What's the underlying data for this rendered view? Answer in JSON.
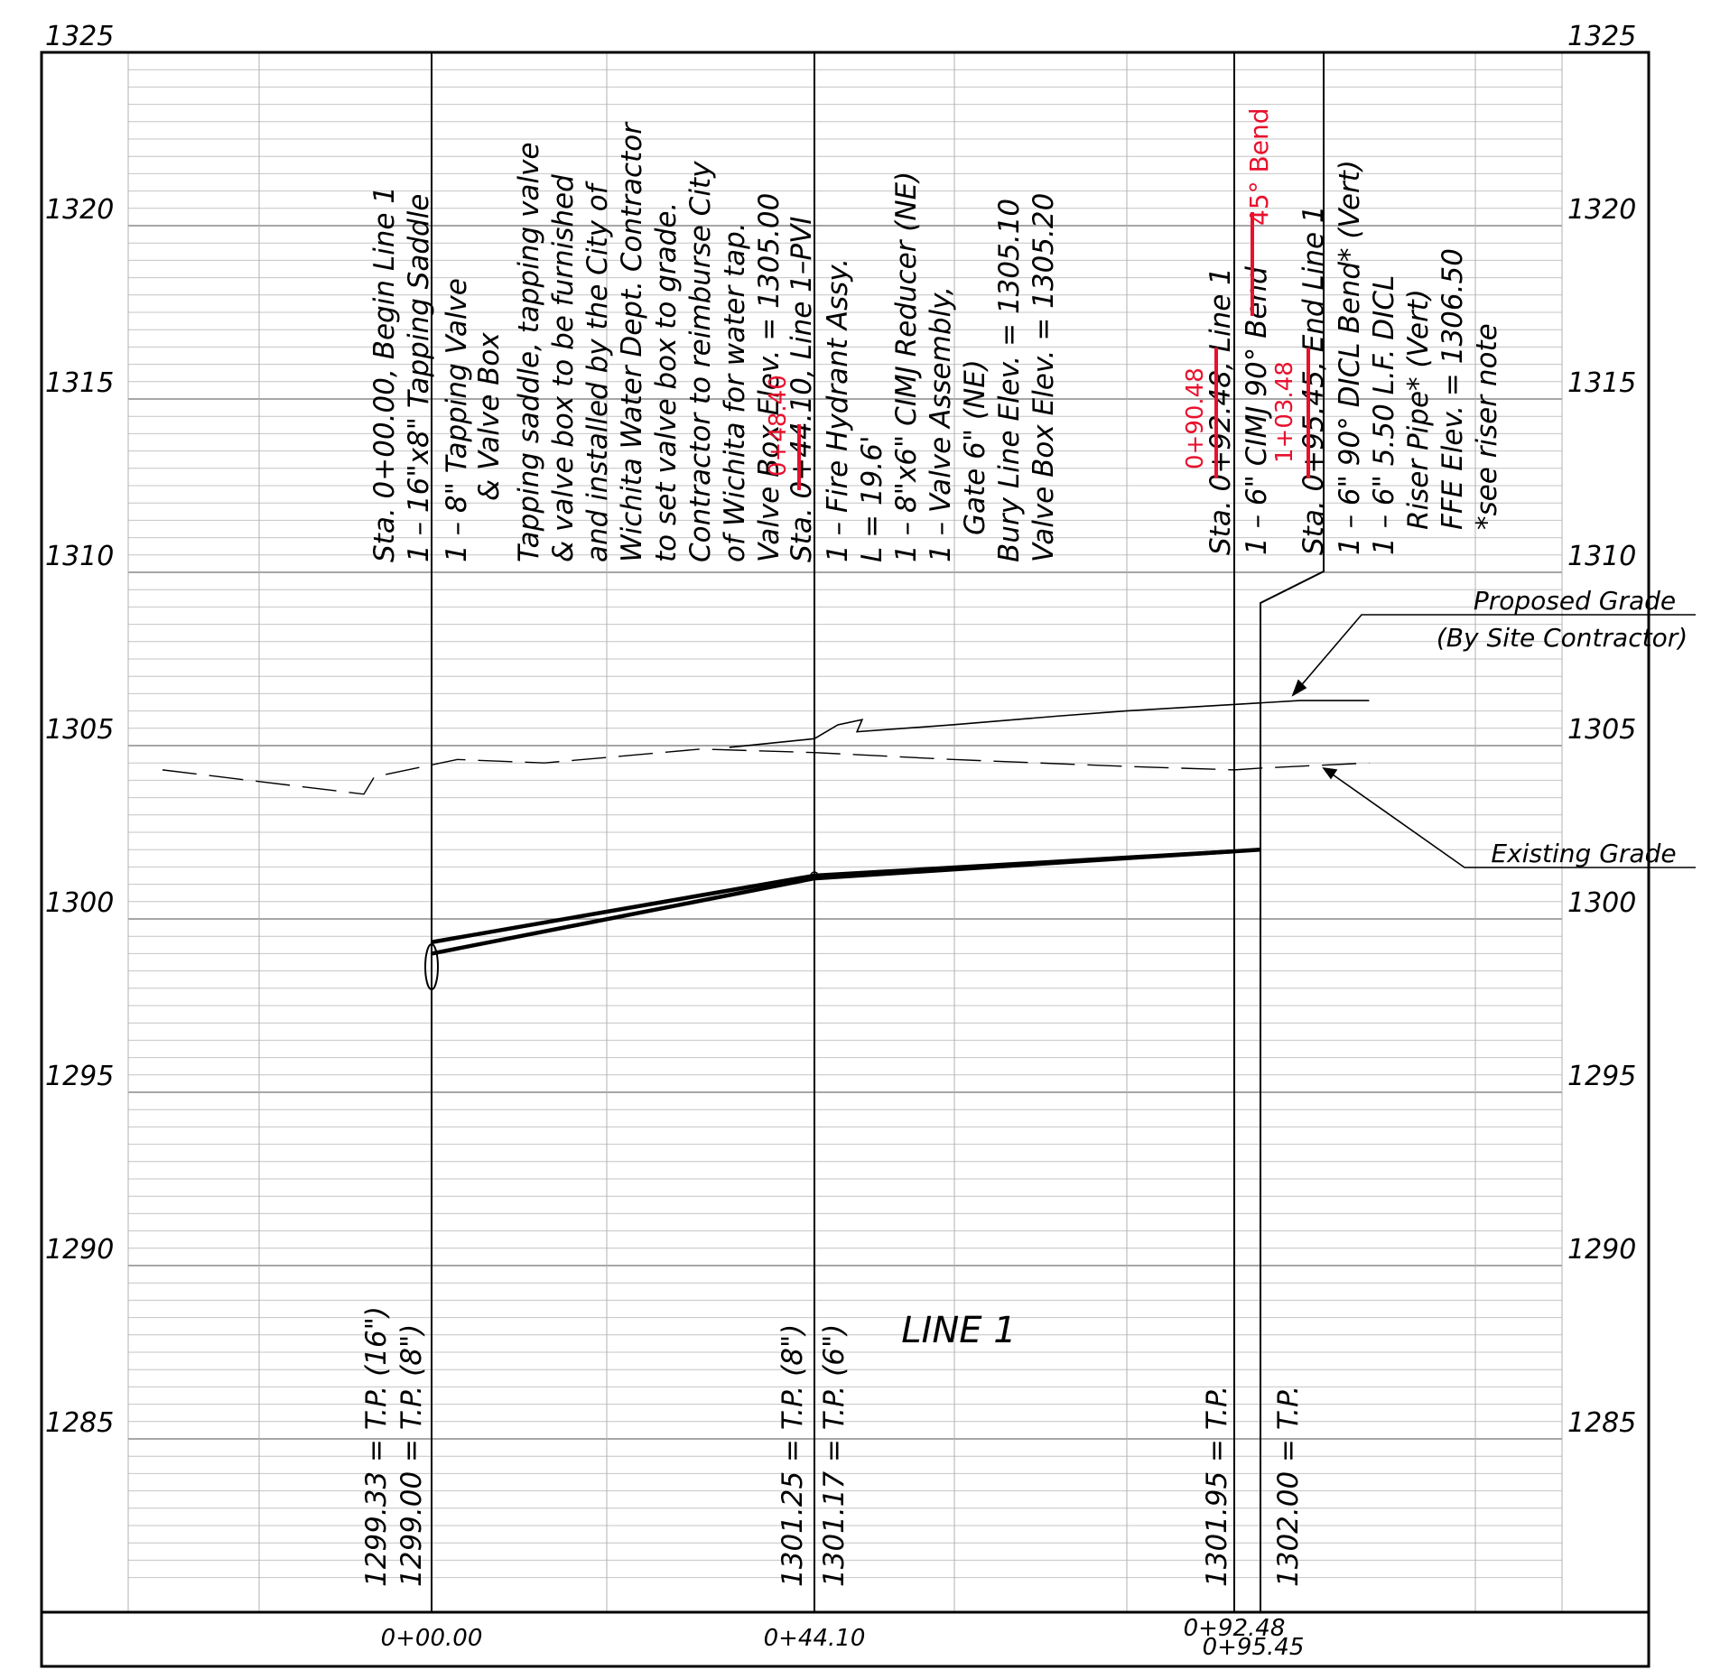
{
  "title": "LINE 1",
  "elevation_labels": [
    "1325",
    "1320",
    "1315",
    "1310",
    "1305",
    "1300",
    "1295",
    "1290",
    "1285"
  ],
  "elevation_values": [
    1325,
    1320,
    1315,
    1310,
    1305,
    1300,
    1295,
    1290,
    1285
  ],
  "station_labels": [
    "0+00.00",
    "0+44.10",
    "0+92.48",
    "0+95.45"
  ],
  "station_values": [
    0.0,
    44.1,
    92.48,
    95.45
  ],
  "grade_labels": {
    "proposed": [
      "Proposed Grade",
      "(By Site Contractor)"
    ],
    "existing": "Existing Grade"
  },
  "notes": {
    "begin": [
      "Sta. 0+00.00, Begin Line 1",
      "1 – 16\"x8\" Tapping Saddle",
      "1 – 8\" Tapping Valve",
      "& Valve Box",
      "Tapping saddle, tapping valve",
      "& valve box to be furnished",
      "and installed by the City of",
      "Wichita Water Dept. Contractor",
      "to set valve box to grade.",
      "Contractor to reimburse City",
      "of Wichita for water tap.",
      "Valve Box Elev. = 1305.00"
    ],
    "pvi": [
      "Sta. 0+44.10, Line 1–PVI",
      "1 – Fire Hydrant Assy.",
      "L = 19.6'",
      "1 – 8\"x6\" CIMJ Reducer (NE)",
      "1 – Valve Assembly,",
      "Gate 6\" (NE)",
      "Bury Line Elev. = 1305.10",
      "Valve Box Elev. = 1305.20"
    ],
    "bend": [
      "Sta. 0+92.48, Line 1",
      "1 – 6\" CIMJ 90° Bend"
    ],
    "end": [
      "Sta. 0+95.45, End Line 1",
      "1 – 6\" 90° DICL Bend* (Vert)",
      "1 – 6\" 5.50 L.F. DICL",
      "Riser Pipe* (Vert)",
      "FFE Elev. = 1306.50",
      "*see riser note"
    ]
  },
  "revisions": {
    "begin_sta": "0+48.40",
    "bend_sta": "0+90.48",
    "bend_type": "45° Bend",
    "end_sta": "1+03.48"
  },
  "tp_labels": [
    [
      "1299.33 = T.P. (16\")",
      "1299.00 = T.P. (8\")"
    ],
    [
      "1301.25 = T.P. (8\")",
      "1301.17 = T.P. (6\")"
    ],
    [
      "1301.95 = T.P."
    ],
    [
      "1302.00 = T.P."
    ]
  ],
  "chart_data": {
    "type": "line",
    "xlabel": "",
    "ylabel": "",
    "ylim": [
      1280,
      1325
    ],
    "series": [
      {
        "name": "",
        "x": [
          0.0,
          44.1,
          92.48
        ],
        "y": [
          1299.33,
          1301.25,
          1301.95
        ]
      },
      {
        "name": "",
        "x": [
          0.0,
          44.1,
          95.45
        ],
        "y": [
          1299.0,
          1301.17,
          1302.0
        ]
      },
      {
        "name": "Proposed Grade",
        "x": [
          34.3,
          44.1,
          46.8,
          49.6,
          49.0,
          60.0,
          72.0,
          80.0,
          90.0,
          100.0,
          108.0
        ],
        "y": [
          1304.95,
          1305.2,
          1305.6,
          1305.75,
          1305.4,
          1305.6,
          1305.85,
          1306.0,
          1306.15,
          1306.3,
          1306.3
        ]
      },
      {
        "name": "Existing Grade",
        "x": [
          -31.0,
          -7.8,
          -6.6,
          3.0,
          13.0,
          31.0,
          44.1,
          60.0,
          80.0,
          92.48,
          95.45,
          108.0
        ],
        "y": [
          1304.3,
          1303.6,
          1304.1,
          1304.6,
          1304.5,
          1304.9,
          1304.8,
          1304.6,
          1304.4,
          1304.3,
          1304.35,
          1304.5
        ]
      }
    ]
  }
}
